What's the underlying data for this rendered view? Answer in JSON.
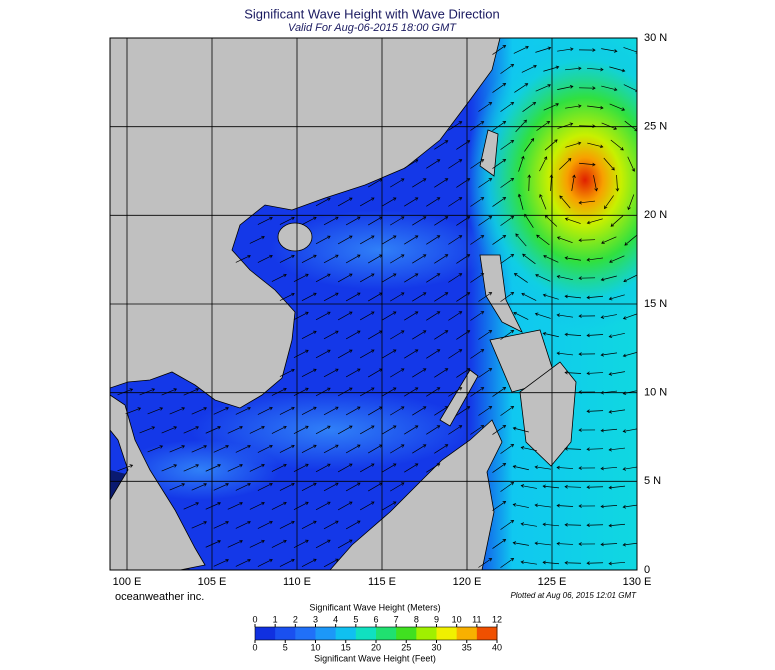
{
  "map": {
    "title": "Significant Wave Height with Wave Direction",
    "subtitle": "Valid For Aug-06-2015 18:00 GMT",
    "xlim": [
      99,
      130
    ],
    "ylim": [
      0,
      30
    ],
    "xticks": [
      {
        "value": 100,
        "label": "100 E"
      },
      {
        "value": 105,
        "label": "105 E"
      },
      {
        "value": 110,
        "label": "110 E"
      },
      {
        "value": 115,
        "label": "115 E"
      },
      {
        "value": 120,
        "label": "120 E"
      },
      {
        "value": 125,
        "label": "125 E"
      },
      {
        "value": 130,
        "label": "130 E"
      }
    ],
    "yticks": [
      0,
      {
        "value": 5,
        "label": "5 N"
      },
      {
        "value": 10,
        "label": "10 N"
      },
      {
        "value": 15,
        "label": "15 N"
      },
      {
        "value": 20,
        "label": "20 N"
      },
      {
        "value": 25,
        "label": "25 N"
      },
      {
        "value": 30,
        "label": "30 N"
      }
    ],
    "credit": "oceanweather inc.",
    "plotted": "Plotted at Aug 06, 2015 12:01 GMT"
  },
  "colorbar": {
    "title_meters": "Significant Wave Height (Meters)",
    "title_feet": "Significant Wave Height (Feet)",
    "meters": [
      0,
      1,
      2,
      3,
      4,
      5,
      6,
      7,
      8,
      9,
      10,
      11,
      12
    ],
    "feet": [
      0,
      5,
      10,
      15,
      20,
      25,
      30,
      35,
      40
    ],
    "colors": [
      "#1030e0",
      "#1a50f0",
      "#2070f8",
      "#1c98f8",
      "#10c0f0",
      "#10e0c0",
      "#20e070",
      "#40e020",
      "#a0f000",
      "#f0f000",
      "#f8b000",
      "#f05000"
    ]
  }
}
